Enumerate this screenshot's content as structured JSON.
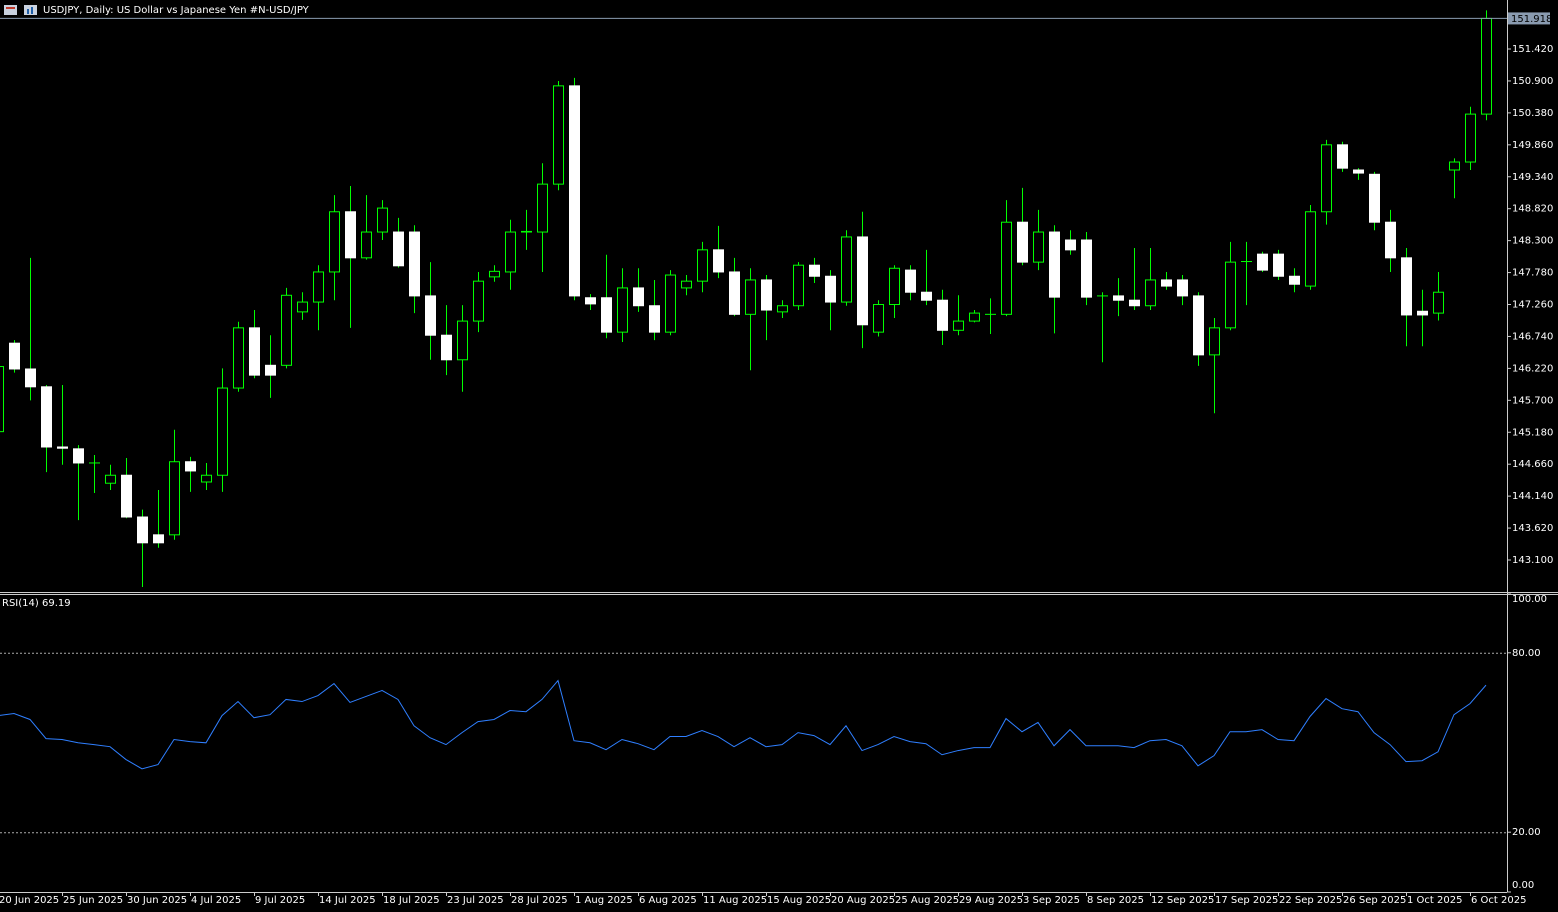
{
  "chart_data": [
    {
      "type": "candlestick",
      "title": "USDJPY, Daily:  US Dollar vs  Japanese Yen #N-USD/JPY",
      "categories": [
        "20 Jun 2025",
        null,
        null,
        null,
        "25 Jun 2025",
        null,
        null,
        null,
        "30 Jun 2025",
        null,
        null,
        null,
        "4 Jul 2025",
        null,
        null,
        null,
        "9 Jul 2025",
        null,
        null,
        null,
        "14 Jul 2025",
        null,
        null,
        null,
        "18 Jul 2025",
        null,
        null,
        null,
        "23 Jul 2025",
        null,
        null,
        null,
        "28 Jul 2025",
        null,
        null,
        null,
        "1 Aug 2025",
        null,
        null,
        null,
        "6 Aug 2025",
        null,
        null,
        null,
        "11 Aug 2025",
        null,
        null,
        null,
        "15 Aug 2025",
        null,
        null,
        null,
        "20 Aug 2025",
        null,
        null,
        null,
        "25 Aug 2025",
        null,
        null,
        null,
        "29 Aug 2025",
        null,
        null,
        null,
        "3 Sep 2025",
        null,
        null,
        null,
        "8 Sep 2025",
        null,
        null,
        null,
        "12 Sep 2025",
        null,
        null,
        null,
        "17 Sep 2025",
        null,
        null,
        null,
        "22 Sep 2025",
        null,
        null,
        null,
        "26 Sep 2025",
        null,
        null,
        null,
        "1 Oct 2025",
        null,
        null,
        null,
        "6 Oct 2025",
        null
      ],
      "open": [
        145.19,
        146.63,
        146.21,
        145.92,
        144.94,
        144.91,
        144.68,
        144.35,
        144.48,
        143.8,
        143.51,
        143.51,
        144.7,
        144.37,
        144.48,
        145.9,
        146.88,
        146.27,
        146.27,
        147.14,
        147.3,
        147.79,
        148.77,
        148.02,
        148.44,
        148.44,
        148.44,
        147.4,
        146.76,
        146.36,
        146.99,
        147.71,
        147.79,
        148.44,
        148.44,
        149.22,
        150.82,
        147.37,
        147.37,
        146.81,
        147.53,
        147.24,
        146.81,
        147.53,
        147.64,
        148.15,
        147.79,
        147.1,
        147.66,
        147.14,
        147.24,
        147.9,
        147.72,
        147.3,
        148.36,
        146.81,
        147.26,
        147.82,
        147.46,
        147.33,
        146.84,
        146.99,
        147.1,
        147.1,
        148.6,
        147.95,
        148.44,
        148.31,
        148.31,
        147.4,
        147.4,
        147.33,
        147.24,
        147.66,
        147.66,
        147.4,
        146.44,
        146.88,
        147.96,
        148.08,
        148.08,
        147.72,
        147.56,
        148.77,
        149.86,
        149.45,
        149.38,
        148.6,
        148.02,
        147.15,
        147.12,
        149.45,
        149.58,
        150.36
      ],
      "high": [
        146.3,
        146.68,
        148.02,
        145.95,
        145.95,
        144.97,
        144.81,
        144.65,
        144.76,
        143.92,
        144.24,
        145.22,
        144.78,
        144.68,
        146.22,
        146.98,
        147.17,
        146.76,
        147.53,
        147.46,
        147.9,
        149.04,
        149.19,
        149.04,
        148.96,
        148.67,
        148.55,
        147.95,
        147.25,
        147.25,
        147.79,
        147.9,
        148.64,
        148.8,
        149.56,
        150.9,
        150.95,
        147.43,
        148.07,
        147.85,
        147.85,
        147.66,
        147.82,
        147.74,
        148.28,
        148.54,
        148.02,
        147.85,
        147.74,
        147.33,
        147.95,
        148.02,
        147.82,
        148.47,
        148.77,
        147.33,
        147.9,
        147.9,
        148.15,
        147.5,
        147.41,
        147.17,
        147.36,
        148.96,
        149.16,
        148.8,
        148.55,
        148.47,
        148.44,
        147.46,
        147.69,
        148.18,
        148.18,
        147.79,
        147.74,
        147.46,
        147.04,
        148.28,
        148.28,
        148.12,
        148.15,
        147.85,
        148.88,
        149.94,
        149.91,
        149.48,
        149.42,
        148.8,
        148.18,
        147.5,
        147.79,
        149.64,
        150.48,
        152.05
      ],
      "low": [
        145.19,
        146.15,
        145.7,
        144.53,
        144.65,
        143.75,
        144.19,
        144.24,
        143.78,
        142.66,
        143.3,
        143.43,
        144.21,
        144.24,
        144.21,
        145.84,
        146.06,
        145.74,
        146.22,
        147.01,
        146.84,
        147.33,
        146.88,
        147.99,
        148.31,
        147.86,
        147.12,
        146.36,
        146.11,
        145.84,
        146.81,
        147.63,
        147.5,
        148.15,
        147.79,
        149.12,
        147.33,
        147.17,
        146.71,
        146.65,
        147.14,
        146.68,
        146.76,
        147.41,
        147.46,
        147.69,
        147.07,
        146.19,
        146.68,
        147.04,
        147.17,
        147.61,
        146.84,
        147.24,
        146.55,
        146.74,
        147.04,
        147.33,
        147.25,
        146.6,
        146.76,
        146.97,
        146.78,
        147.07,
        147.9,
        147.82,
        146.79,
        148.07,
        147.25,
        146.32,
        147.07,
        147.17,
        147.17,
        147.5,
        147.25,
        146.26,
        145.49,
        146.84,
        147.25,
        147.79,
        147.66,
        147.46,
        147.5,
        148.56,
        149.42,
        149.29,
        148.47,
        147.79,
        146.58,
        146.58,
        147.0,
        148.99,
        149.45,
        150.26
      ],
      "close": [
        146.25,
        146.21,
        145.92,
        144.94,
        144.92,
        144.68,
        144.68,
        144.48,
        143.8,
        143.38,
        143.38,
        144.7,
        144.55,
        144.48,
        145.9,
        146.88,
        146.11,
        146.11,
        147.41,
        147.3,
        147.79,
        148.77,
        148.02,
        148.44,
        148.83,
        147.89,
        147.4,
        146.76,
        146.36,
        146.99,
        147.64,
        147.8,
        148.44,
        148.45,
        149.22,
        150.82,
        147.4,
        147.27,
        146.81,
        147.53,
        147.24,
        146.81,
        147.74,
        147.64,
        148.15,
        147.79,
        147.1,
        147.66,
        147.17,
        147.24,
        147.9,
        147.72,
        147.3,
        148.36,
        146.93,
        147.26,
        147.85,
        147.46,
        147.33,
        146.84,
        146.99,
        147.12,
        147.1,
        148.6,
        147.95,
        148.44,
        147.38,
        148.15,
        147.38,
        147.4,
        147.33,
        147.24,
        147.66,
        147.56,
        147.4,
        146.44,
        146.88,
        147.95,
        147.96,
        147.82,
        147.72,
        147.59,
        148.77,
        149.86,
        149.48,
        149.4,
        148.6,
        148.02,
        147.09,
        147.09,
        147.46,
        149.58,
        150.36,
        151.918
      ],
      "colors": {
        "wick": "#00ff00",
        "up": "#000000",
        "down": "#ffffff",
        "price_line": "#8a9bb0"
      },
      "ylim": [
        142.579,
        152.218
      ],
      "yticks": [
        {
          "value": 151.42,
          "label": "151.420"
        },
        {
          "value": 150.9,
          "label": "150.900"
        },
        {
          "value": 150.38,
          "label": "150.380"
        },
        {
          "value": 149.86,
          "label": "149.860"
        },
        {
          "value": 149.34,
          "label": "149.340"
        },
        {
          "value": 148.82,
          "label": "148.820"
        },
        {
          "value": 148.3,
          "label": "148.300"
        },
        {
          "value": 147.78,
          "label": "147.780"
        },
        {
          "value": 147.26,
          "label": "147.260"
        },
        {
          "value": 146.74,
          "label": "146.740"
        },
        {
          "value": 146.22,
          "label": "146.220"
        },
        {
          "value": 145.7,
          "label": "145.700"
        },
        {
          "value": 145.18,
          "label": "145.180"
        },
        {
          "value": 144.66,
          "label": "144.660"
        },
        {
          "value": 144.14,
          "label": "144.140"
        },
        {
          "value": 143.62,
          "label": "143.620"
        },
        {
          "value": 143.1,
          "label": "143.100"
        }
      ]
    },
    {
      "type": "line",
      "title": "RSI(14)",
      "color": "#2f7fff",
      "values": [
        59.0,
        59.7,
        57.7,
        51.3,
        51.0,
        49.9,
        49.3,
        48.6,
        44.3,
        41.2,
        42.6,
        51.0,
        50.3,
        49.9,
        59.0,
        63.7,
        58.3,
        59.3,
        64.4,
        63.7,
        65.7,
        69.7,
        63.4,
        65.4,
        67.4,
        64.4,
        55.6,
        51.6,
        49.3,
        53.3,
        57.0,
        57.7,
        60.7,
        60.3,
        64.4,
        70.7,
        50.6,
        49.9,
        47.6,
        51.0,
        49.6,
        47.6,
        52.0,
        52.0,
        54.0,
        52.0,
        48.6,
        51.6,
        48.6,
        49.3,
        53.3,
        52.3,
        49.3,
        55.6,
        47.3,
        49.3,
        52.0,
        50.3,
        49.6,
        45.9,
        47.3,
        48.3,
        48.3,
        58.0,
        53.6,
        56.7,
        48.9,
        54.3,
        48.9,
        48.9,
        48.9,
        48.3,
        50.6,
        51.0,
        48.9,
        42.2,
        45.6,
        53.6,
        53.6,
        54.3,
        51.0,
        50.6,
        58.7,
        64.7,
        61.3,
        60.3,
        53.3,
        49.3,
        43.6,
        43.9,
        46.9,
        59.3,
        63.0,
        69.19
      ],
      "ylim": [
        0,
        100
      ],
      "yticks": [
        {
          "value": 100,
          "label": "100.00"
        },
        {
          "value": 80,
          "label": "80.00"
        },
        {
          "value": 20,
          "label": "20.00"
        },
        {
          "value": 0,
          "label": "0.00"
        }
      ]
    }
  ]
}
